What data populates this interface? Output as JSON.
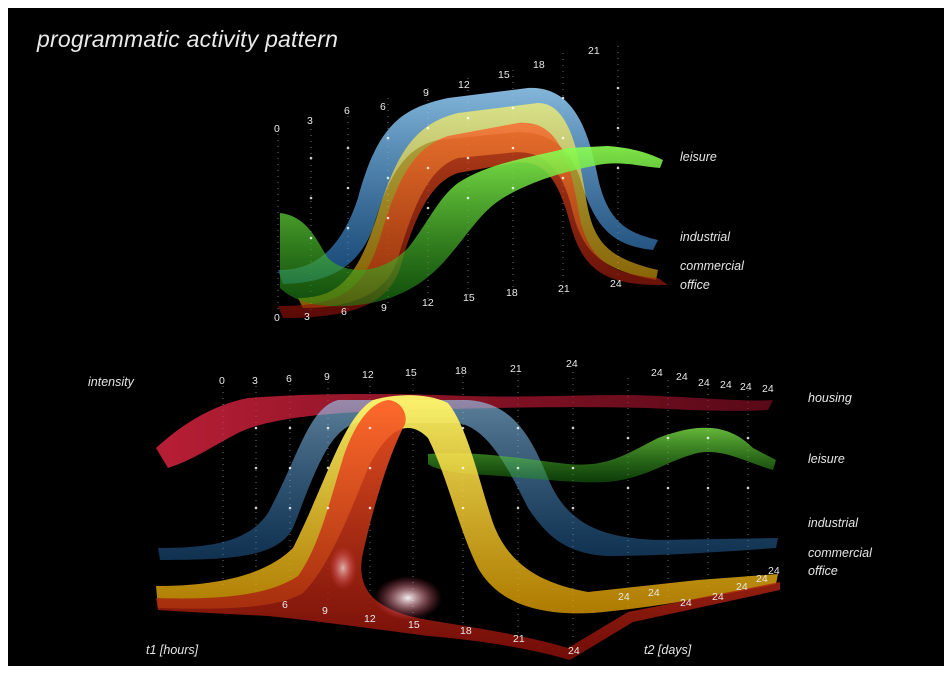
{
  "title": "programmatic activity pattern",
  "colors": {
    "background": "#000000",
    "housing": "#c81e2e",
    "leisure": "#55e02a",
    "industrial": "#4aaee8",
    "commercial": "#ffe11a",
    "office": "#e4301a"
  },
  "top_diagram": {
    "series_labels": [
      "leisure",
      "industrial",
      "commercial",
      "office"
    ],
    "upper_hour_ticks": [
      "6",
      "9",
      "12",
      "15",
      "18",
      "21"
    ],
    "lower_hour_ticks": [
      "0",
      "3",
      "6",
      "9",
      "12",
      "15",
      "18",
      "21",
      "24"
    ],
    "left_column_ticks": [
      "0",
      "3",
      "6"
    ]
  },
  "bottom_diagram": {
    "axis_intensity": "intensity",
    "axis_t1": "t1 [hours]",
    "axis_t2": "t2 [days]",
    "series_labels": [
      "housing",
      "leisure",
      "industrial",
      "commercial",
      "office"
    ],
    "top_hour_ticks": [
      "0",
      "3",
      "6",
      "9",
      "12",
      "15",
      "18",
      "21",
      "24"
    ],
    "top_day_ticks": [
      "24",
      "24",
      "24",
      "24",
      "24",
      "24"
    ],
    "front_hour_ticks": [
      "6",
      "9",
      "12",
      "15",
      "18",
      "21",
      "24"
    ],
    "right_day_ticks": [
      "24",
      "24",
      "24",
      "24",
      "24",
      "24",
      "24"
    ]
  }
}
